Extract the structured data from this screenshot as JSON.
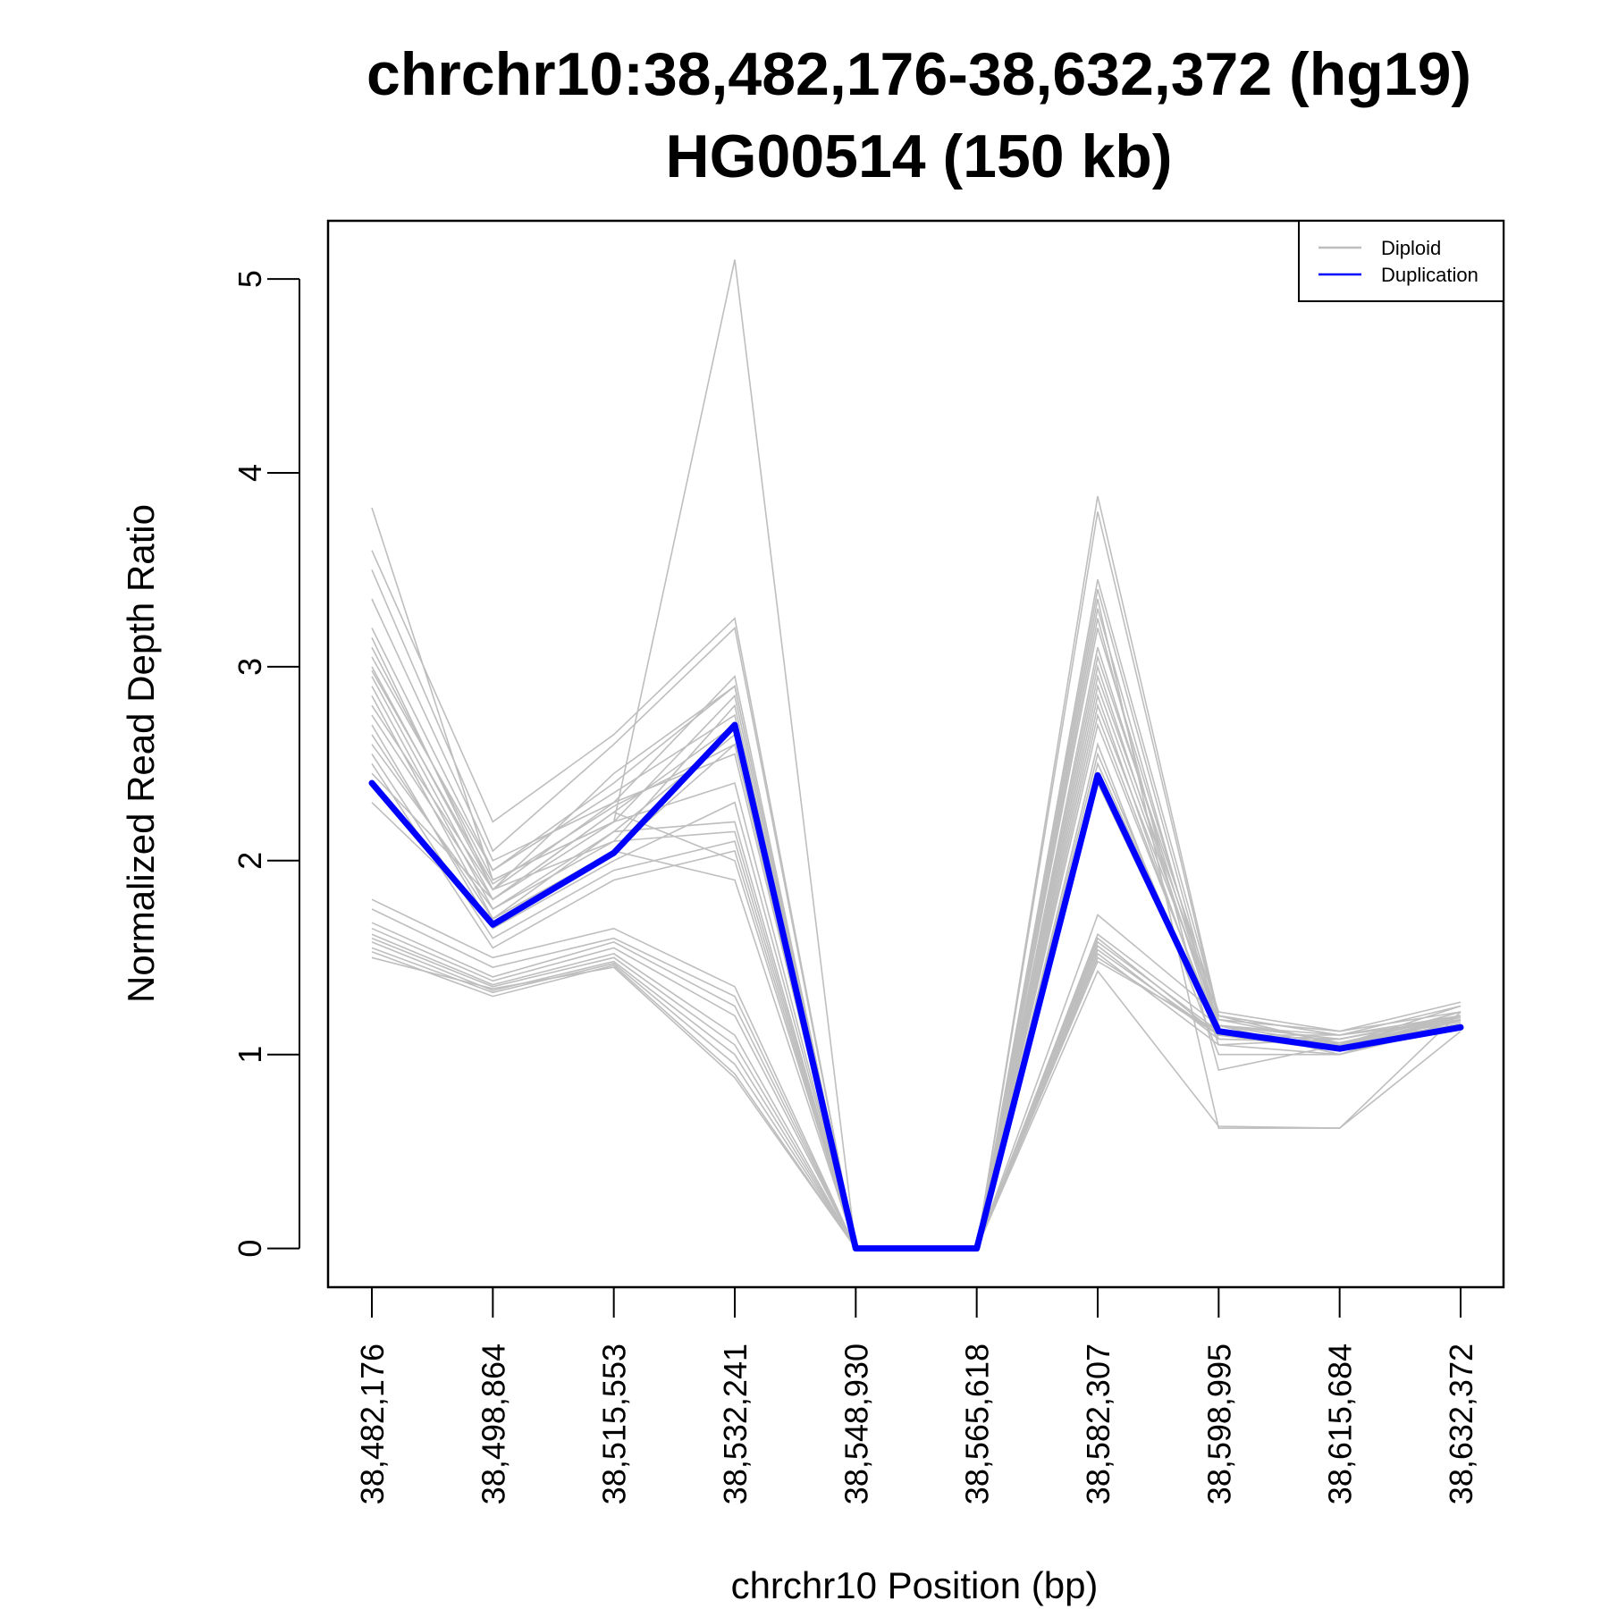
{
  "chart_data": {
    "type": "line",
    "title": "chrchr10:38,482,176-38,632,372 (hg19)",
    "subtitle": "HG00514 (150 kb)",
    "xlabel": "chrchr10 Position (bp)",
    "ylabel": "Normalized Read Depth Ratio",
    "x": [
      "38,482,176",
      "38,498,864",
      "38,515,553",
      "38,532,241",
      "38,548,930",
      "38,565,618",
      "38,582,307",
      "38,598,995",
      "38,615,684",
      "38,632,372"
    ],
    "y_ticks": [
      "0",
      "1",
      "2",
      "3",
      "4",
      "5"
    ],
    "ylim": [
      -0.2,
      5.3
    ],
    "grid": false,
    "legend": {
      "position": "top-right",
      "entries": [
        {
          "label": "Diploid",
          "color": "#bebebe"
        },
        {
          "label": "Duplication",
          "color": "#0000ff"
        }
      ]
    },
    "highlight_series": {
      "name": "Duplication",
      "color": "#0000ff",
      "values": [
        2.4,
        1.67,
        2.04,
        2.7,
        0.0,
        0.0,
        2.44,
        1.12,
        1.03,
        1.14
      ]
    },
    "series": [
      {
        "values": [
          3.82,
          1.9,
          2.2,
          5.1,
          0.0,
          0.0,
          3.88,
          1.2,
          1.1,
          1.2
        ]
      },
      {
        "values": [
          3.6,
          2.2,
          2.65,
          3.25,
          0.0,
          0.0,
          3.8,
          1.18,
          1.12,
          1.22
        ]
      },
      {
        "values": [
          3.5,
          2.05,
          2.6,
          3.2,
          0.0,
          0.0,
          3.45,
          1.2,
          1.05,
          1.18
        ]
      },
      {
        "values": [
          3.35,
          2.0,
          2.3,
          2.95,
          0.0,
          0.0,
          3.4,
          1.15,
          1.1,
          1.25
        ]
      },
      {
        "values": [
          3.2,
          1.95,
          2.4,
          2.9,
          0.0,
          0.0,
          3.3,
          1.1,
          1.08,
          1.2
        ]
      },
      {
        "values": [
          3.1,
          1.9,
          2.2,
          2.85,
          0.0,
          0.0,
          3.2,
          1.15,
          1.05,
          1.15
        ]
      },
      {
        "values": [
          3.0,
          1.85,
          2.1,
          2.8,
          0.0,
          0.0,
          3.1,
          1.12,
          1.02,
          1.2
        ]
      },
      {
        "values": [
          2.95,
          1.8,
          2.25,
          2.7,
          0.0,
          0.0,
          3.0,
          1.1,
          1.1,
          1.18
        ]
      },
      {
        "values": [
          2.9,
          1.75,
          2.15,
          2.65,
          0.0,
          0.0,
          2.95,
          1.2,
          1.05,
          1.22
        ]
      },
      {
        "values": [
          2.85,
          1.7,
          2.05,
          2.6,
          0.0,
          0.0,
          2.9,
          1.15,
          1.0,
          1.15
        ]
      },
      {
        "values": [
          2.8,
          1.85,
          2.3,
          2.55,
          0.0,
          0.0,
          2.85,
          1.05,
          1.08,
          1.2
        ]
      },
      {
        "values": [
          2.75,
          1.8,
          2.2,
          2.4,
          0.0,
          0.0,
          2.8,
          1.18,
          1.06,
          1.17
        ]
      },
      {
        "values": [
          2.7,
          1.65,
          2.0,
          2.3,
          0.0,
          0.0,
          2.75,
          1.1,
          1.02,
          1.2
        ]
      },
      {
        "values": [
          2.65,
          1.7,
          2.15,
          2.2,
          0.0,
          0.0,
          2.7,
          1.12,
          1.04,
          1.22
        ]
      },
      {
        "values": [
          2.6,
          1.75,
          2.1,
          2.15,
          0.0,
          0.0,
          2.6,
          1.0,
          1.0,
          1.18
        ]
      },
      {
        "values": [
          2.55,
          1.6,
          1.95,
          2.1,
          0.0,
          0.0,
          2.55,
          1.08,
          1.06,
          1.2
        ]
      },
      {
        "values": [
          2.5,
          1.55,
          1.9,
          2.05,
          0.0,
          0.0,
          2.5,
          1.12,
          1.03,
          1.16
        ]
      },
      {
        "values": [
          2.45,
          1.8,
          2.25,
          2.0,
          0.0,
          0.0,
          2.45,
          1.15,
          1.08,
          1.19
        ]
      },
      {
        "values": [
          2.3,
          1.7,
          2.05,
          1.9,
          0.0,
          0.0,
          2.4,
          1.1,
          1.04,
          1.2
        ]
      },
      {
        "values": [
          3.05,
          1.95,
          2.35,
          2.75,
          0.0,
          0.0,
          3.35,
          0.62,
          0.62,
          1.12
        ]
      },
      {
        "values": [
          3.15,
          1.85,
          2.45,
          2.9,
          0.0,
          0.0,
          3.25,
          0.92,
          1.05,
          1.25
        ]
      },
      {
        "values": [
          2.98,
          1.88,
          2.28,
          2.6,
          0.0,
          0.0,
          3.05,
          1.22,
          1.12,
          1.27
        ]
      },
      {
        "values": [
          1.8,
          1.5,
          1.65,
          1.35,
          0.0,
          0.0,
          1.72,
          1.2,
          1.1,
          1.2
        ]
      },
      {
        "values": [
          1.75,
          1.45,
          1.6,
          1.3,
          0.0,
          0.0,
          1.62,
          1.15,
          1.05,
          1.18
        ]
      },
      {
        "values": [
          1.68,
          1.4,
          1.58,
          1.25,
          0.0,
          0.0,
          1.6,
          1.1,
          1.08,
          1.2
        ]
      },
      {
        "values": [
          1.65,
          1.38,
          1.55,
          1.2,
          0.0,
          0.0,
          1.58,
          1.12,
          1.02,
          1.16
        ]
      },
      {
        "values": [
          1.62,
          1.36,
          1.52,
          1.1,
          0.0,
          0.0,
          1.56,
          1.08,
          1.06,
          1.2
        ]
      },
      {
        "values": [
          1.6,
          1.35,
          1.5,
          1.05,
          0.0,
          0.0,
          1.54,
          1.1,
          1.04,
          1.18
        ]
      },
      {
        "values": [
          1.58,
          1.33,
          1.48,
          1.0,
          0.0,
          0.0,
          1.52,
          1.05,
          1.0,
          1.2
        ]
      },
      {
        "values": [
          1.55,
          1.32,
          1.47,
          0.95,
          0.0,
          0.0,
          1.5,
          1.1,
          1.05,
          1.16
        ]
      },
      {
        "values": [
          1.53,
          1.3,
          1.46,
          0.9,
          0.0,
          0.0,
          1.48,
          1.12,
          1.03,
          1.2
        ]
      },
      {
        "values": [
          1.5,
          1.34,
          1.45,
          0.88,
          0.0,
          0.0,
          1.43,
          0.63,
          0.62,
          1.22
        ]
      }
    ]
  }
}
